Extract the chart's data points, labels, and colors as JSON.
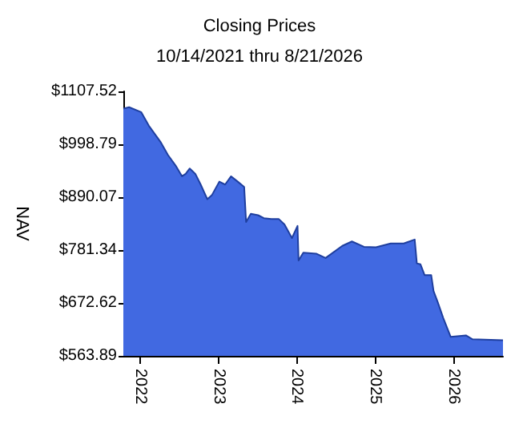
{
  "chart_data": {
    "type": "area",
    "title": "Closing Prices",
    "subtitle": "10/14/2021 thru 8/21/2026",
    "ylabel": "NAV",
    "x": [
      "2021-10-14",
      "2021-11-10",
      "2022-01-05",
      "2022-02-10",
      "2022-04-05",
      "2022-05-10",
      "2022-06-15",
      "2022-07-15",
      "2022-08-01",
      "2022-08-20",
      "2022-09-15",
      "2022-10-10",
      "2022-11-10",
      "2022-12-01",
      "2023-01-05",
      "2023-02-01",
      "2023-03-01",
      "2023-04-01",
      "2023-05-01",
      "2023-05-10",
      "2023-06-01",
      "2023-07-05",
      "2023-08-01",
      "2023-09-05",
      "2023-10-10",
      "2023-11-05",
      "2023-12-10",
      "2024-01-05",
      "2024-01-10",
      "2024-02-01",
      "2024-04-01",
      "2024-05-15",
      "2024-08-01",
      "2024-09-15",
      "2024-11-10",
      "2025-01-05",
      "2025-03-15",
      "2025-05-15",
      "2025-07-05",
      "2025-07-15",
      "2025-08-01",
      "2025-08-20",
      "2025-09-20",
      "2025-10-01",
      "2025-10-20",
      "2025-11-15",
      "2025-12-20",
      "2026-03-01",
      "2026-04-01",
      "2026-08-21"
    ],
    "series": [
      {
        "color": "#4169e1",
        "values": [
          1072,
          1075,
          1065,
          1037,
          1004,
          977,
          955,
          933,
          938,
          949,
          938,
          916,
          886,
          894,
          922,
          916,
          933,
          922,
          911,
          839,
          856,
          853,
          847,
          845,
          845,
          834,
          806,
          831,
          760,
          776,
          774,
          765,
          790,
          799,
          788,
          787,
          795,
          795,
          803,
          754,
          752,
          730,
          730,
          697,
          675,
          642,
          603,
          606,
          598,
          596
        ]
      }
    ],
    "xlim": [
      "2021-10-14",
      "2026-08-21"
    ],
    "xticks": [
      "2022",
      "2023",
      "2024",
      "2025",
      "2026"
    ],
    "ylim": [
      563.89,
      1107.52
    ],
    "yticks": [
      {
        "value": 563.89,
        "label": "$563.89"
      },
      {
        "value": 672.62,
        "label": "$672.62"
      },
      {
        "value": 781.34,
        "label": "$781.34"
      },
      {
        "value": 890.07,
        "label": "$890.07"
      },
      {
        "value": 998.79,
        "label": "$998.79"
      },
      {
        "value": 1107.52,
        "label": "$1107.52"
      }
    ],
    "grid": false,
    "marker": "none"
  }
}
